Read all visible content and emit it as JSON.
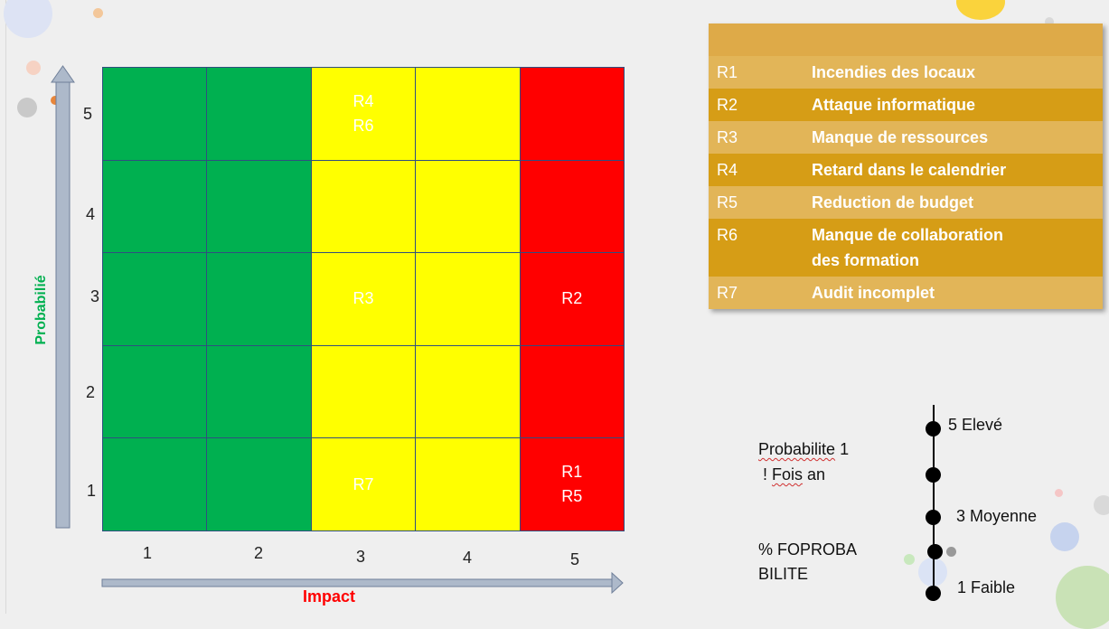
{
  "matrix": {
    "y_axis_title": "Probabilié",
    "x_axis_title": "Impact",
    "y_ticks": [
      "5",
      "4",
      "3",
      "2",
      "1"
    ],
    "x_ticks": [
      "1",
      "2",
      "3",
      "4",
      "5"
    ],
    "colors": {
      "green": "#00b050",
      "yellow": "#ffff00",
      "red": "#ff0000"
    },
    "rows": [
      {
        "probability": 5,
        "cells": [
          {
            "impact": 1,
            "color": "green",
            "label": ""
          },
          {
            "impact": 2,
            "color": "green",
            "label": ""
          },
          {
            "impact": 3,
            "color": "yellow",
            "label": "R4\nR6"
          },
          {
            "impact": 4,
            "color": "yellow",
            "label": ""
          },
          {
            "impact": 5,
            "color": "red",
            "label": ""
          }
        ]
      },
      {
        "probability": 4,
        "cells": [
          {
            "impact": 1,
            "color": "green",
            "label": ""
          },
          {
            "impact": 2,
            "color": "green",
            "label": ""
          },
          {
            "impact": 3,
            "color": "yellow",
            "label": ""
          },
          {
            "impact": 4,
            "color": "yellow",
            "label": ""
          },
          {
            "impact": 5,
            "color": "red",
            "label": ""
          }
        ]
      },
      {
        "probability": 3,
        "cells": [
          {
            "impact": 1,
            "color": "green",
            "label": ""
          },
          {
            "impact": 2,
            "color": "green",
            "label": ""
          },
          {
            "impact": 3,
            "color": "yellow",
            "label": "R3"
          },
          {
            "impact": 4,
            "color": "yellow",
            "label": ""
          },
          {
            "impact": 5,
            "color": "red",
            "label": "R2"
          }
        ]
      },
      {
        "probability": 2,
        "cells": [
          {
            "impact": 1,
            "color": "green",
            "label": ""
          },
          {
            "impact": 2,
            "color": "green",
            "label": ""
          },
          {
            "impact": 3,
            "color": "yellow",
            "label": ""
          },
          {
            "impact": 4,
            "color": "yellow",
            "label": ""
          },
          {
            "impact": 5,
            "color": "red",
            "label": ""
          }
        ]
      },
      {
        "probability": 1,
        "cells": [
          {
            "impact": 1,
            "color": "green",
            "label": ""
          },
          {
            "impact": 2,
            "color": "green",
            "label": ""
          },
          {
            "impact": 3,
            "color": "yellow",
            "label": "R7"
          },
          {
            "impact": 4,
            "color": "yellow",
            "label": ""
          },
          {
            "impact": 5,
            "color": "red",
            "label": "R1\nR5"
          }
        ]
      }
    ]
  },
  "risks": [
    {
      "code": "R1",
      "name": "Incendies des locaux"
    },
    {
      "code": "R2",
      "name": "Attaque informatique"
    },
    {
      "code": "R3",
      "name": "Manque de ressources"
    },
    {
      "code": "R4",
      "name": "Retard dans le calendrier"
    },
    {
      "code": "R5",
      "name": "Reduction de budget"
    },
    {
      "code": "R6",
      "name": "Manque de collaboration\ndes formation"
    },
    {
      "code": "R7",
      "name": "Audit incomplet"
    }
  ],
  "scale": {
    "note1_word": "Probabilite",
    "note1_rest": " 1",
    "note2_prefix": " ! ",
    "note2_word": "Fois",
    "note2_rest": " an",
    "note3": "% FOPROBA\nBILITE",
    "labels": {
      "high": "5 Elevé",
      "mid": "3 Moyenne",
      "low": "1 Faible"
    }
  }
}
